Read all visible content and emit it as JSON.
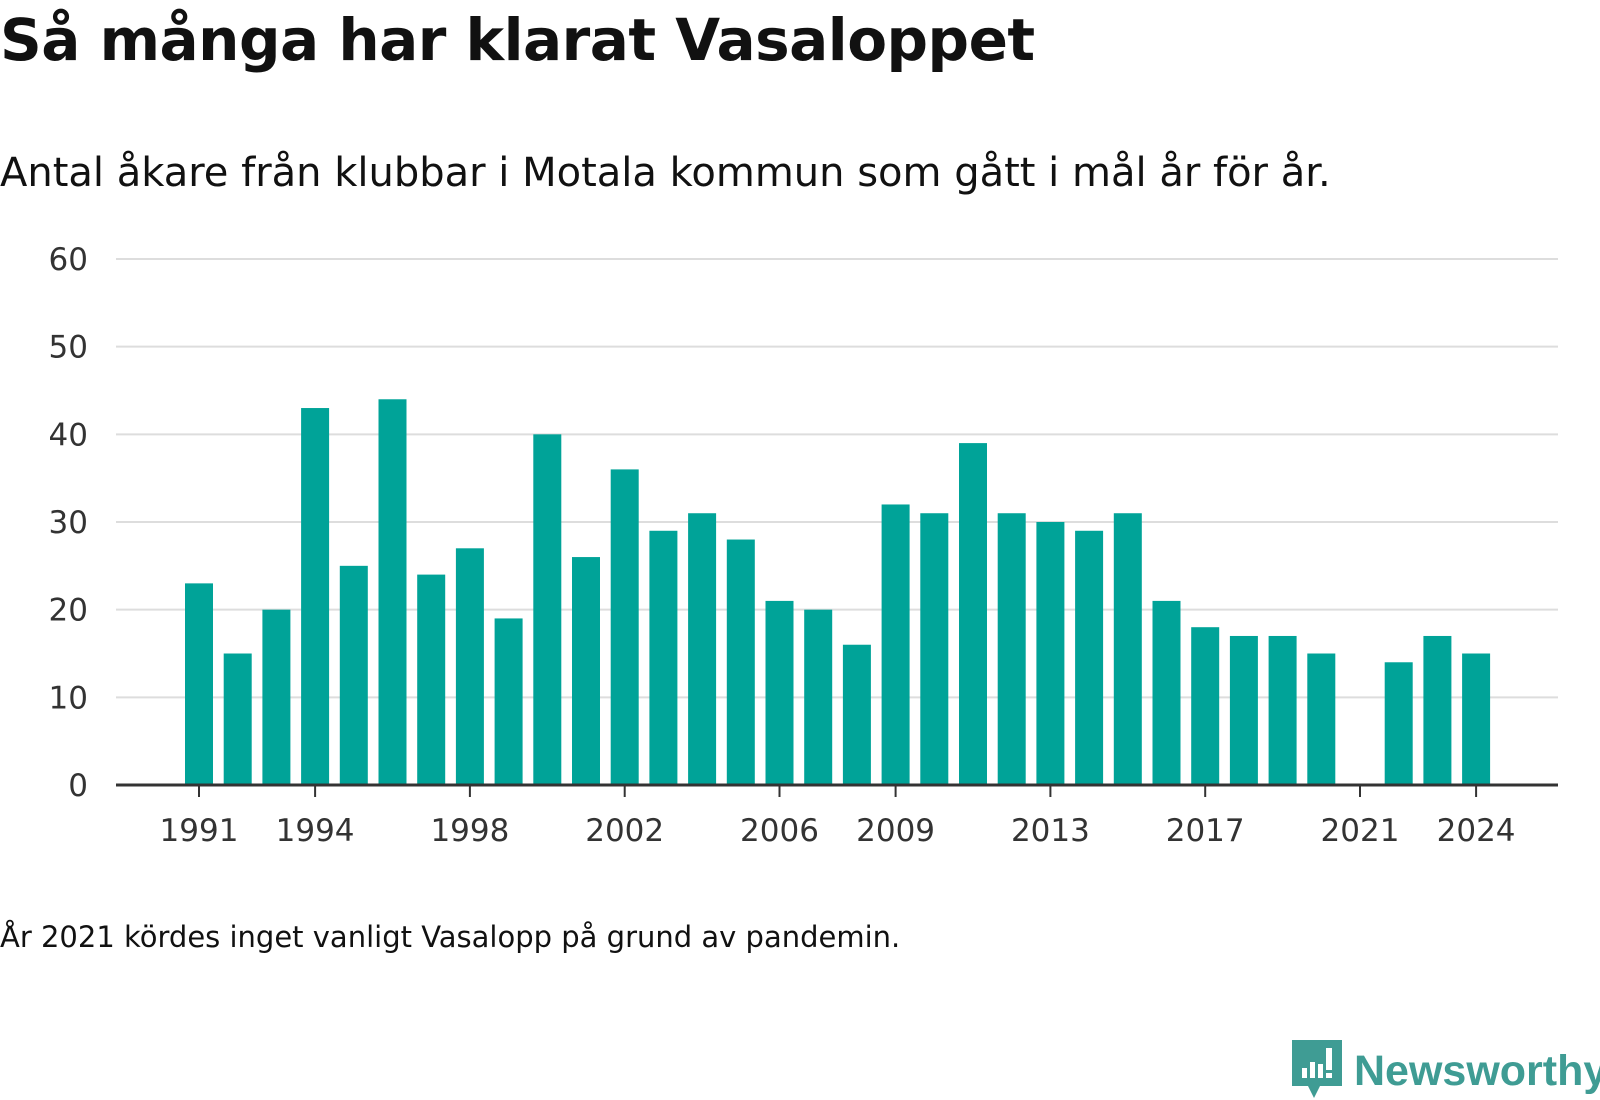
{
  "title": "Så många har klarat Vasaloppet",
  "subtitle": "Antal åkare från klubbar i Motala kommun som gått i mål år för år.",
  "note": "År 2021 kördes inget vanligt Vasalopp på grund av pandemin.",
  "brand": {
    "name": "Newsworthy",
    "color": "#3f9c94",
    "icon": "newsworthy-logo-icon"
  },
  "chart_data": {
    "type": "bar",
    "title": "Så många har klarat Vasaloppet",
    "subtitle": "Antal åkare från klubbar i Motala kommun som gått i mål år för år.",
    "xlabel": "",
    "ylabel": "",
    "bar_color": "#00a398",
    "grid": true,
    "ylim": [
      0,
      60
    ],
    "yticks": [
      0,
      10,
      20,
      30,
      40,
      50,
      60
    ],
    "xticks": [
      1991,
      1994,
      1998,
      2002,
      2006,
      2009,
      2013,
      2017,
      2021,
      2024
    ],
    "categories": [
      1991,
      1992,
      1993,
      1994,
      1995,
      1996,
      1997,
      1998,
      1999,
      2000,
      2001,
      2002,
      2003,
      2004,
      2005,
      2006,
      2007,
      2008,
      2009,
      2010,
      2011,
      2012,
      2013,
      2014,
      2015,
      2016,
      2017,
      2018,
      2019,
      2020,
      2021,
      2022,
      2023,
      2024
    ],
    "values": [
      23,
      15,
      20,
      43,
      25,
      44,
      24,
      27,
      19,
      40,
      26,
      36,
      29,
      31,
      28,
      21,
      20,
      16,
      32,
      31,
      39,
      31,
      30,
      29,
      31,
      21,
      18,
      17,
      17,
      15,
      null,
      14,
      17,
      15
    ]
  }
}
